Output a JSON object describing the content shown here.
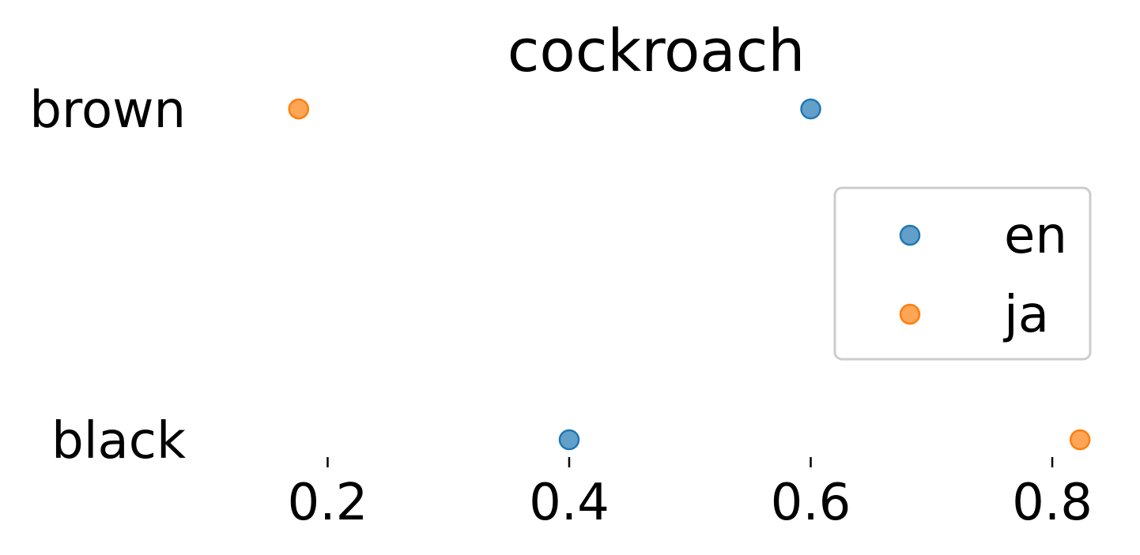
{
  "chart_data": {
    "type": "scatter",
    "title": "cockroach",
    "categories": [
      "brown",
      "black"
    ],
    "x_ticks": [
      0.2,
      0.4,
      0.6,
      0.8
    ],
    "x_tick_labels": [
      "0.2",
      "0.4",
      "0.6",
      "0.8"
    ],
    "xlim": [
      0.0989,
      0.8386
    ],
    "grid": false,
    "legend_position": "center-right",
    "series": [
      {
        "name": "en",
        "color": "#1f77b4",
        "points": [
          {
            "category": "brown",
            "x": 0.6
          },
          {
            "category": "black",
            "x": 0.4
          }
        ]
      },
      {
        "name": "ja",
        "color": "#ff7f0e",
        "points": [
          {
            "category": "brown",
            "x": 0.176
          },
          {
            "category": "black",
            "x": 0.823
          }
        ]
      }
    ]
  }
}
